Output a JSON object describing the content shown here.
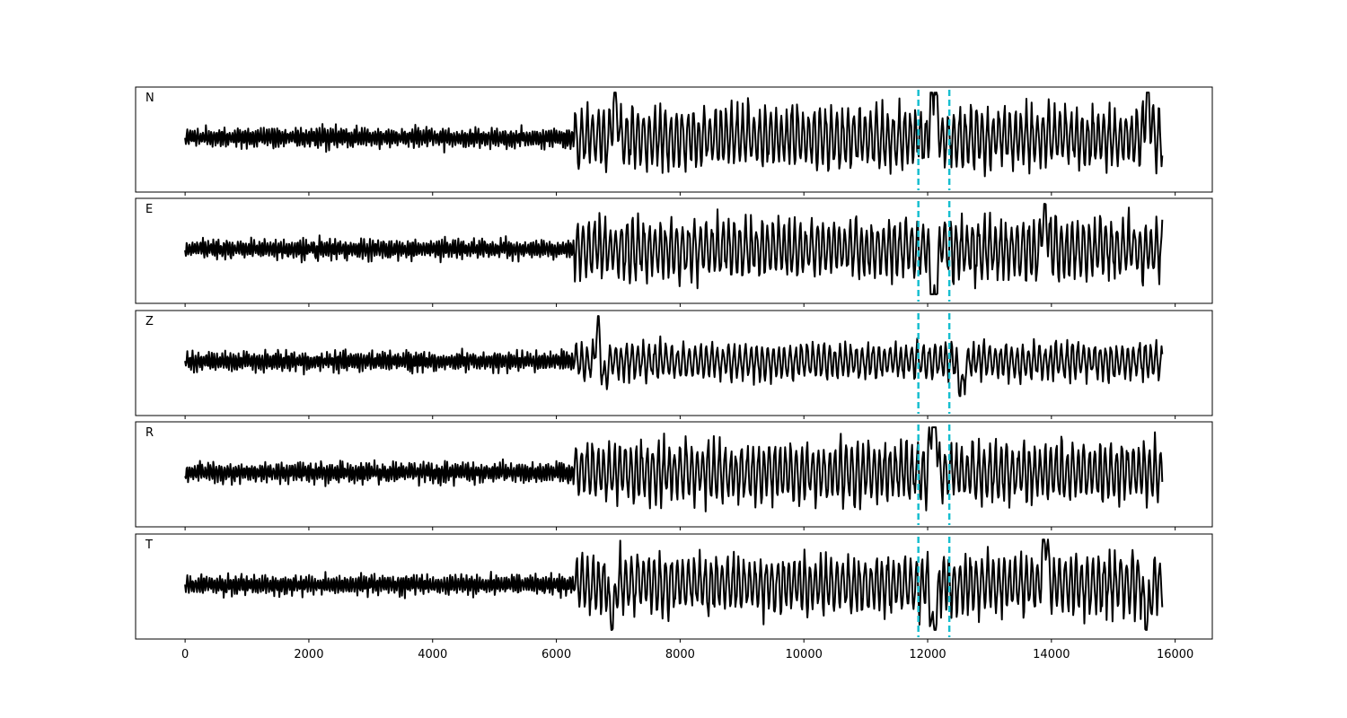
{
  "chart_data": {
    "type": "line",
    "panels": [
      {
        "label": "N",
        "seed": 11,
        "onset_amp": 1.0,
        "bursts": [
          [
            6950,
            0.9
          ],
          [
            12100,
            1.35
          ],
          [
            15550,
            1.0
          ]
        ]
      },
      {
        "label": "E",
        "seed": 23,
        "onset_amp": 1.0,
        "bursts": [
          [
            12100,
            -1.6
          ],
          [
            13900,
            0.9
          ]
        ]
      },
      {
        "label": "Z",
        "seed": 37,
        "onset_amp": 0.6,
        "bursts": [
          [
            6700,
            1.6
          ],
          [
            6730,
            -1.3
          ],
          [
            12550,
            -0.6
          ]
        ]
      },
      {
        "label": "R",
        "seed": 41,
        "onset_amp": 1.0,
        "bursts": [
          [
            12100,
            1.8
          ]
        ]
      },
      {
        "label": "T",
        "seed": 53,
        "onset_amp": 1.0,
        "bursts": [
          [
            6900,
            -0.8
          ],
          [
            12100,
            -1.2
          ],
          [
            13900,
            1.1
          ],
          [
            15550,
            -0.9
          ]
        ]
      }
    ],
    "pre_event_amp": 0.25,
    "event_onset": 6300,
    "x_range": [
      -800,
      16600
    ],
    "xticks": [
      0,
      2000,
      4000,
      6000,
      8000,
      10000,
      12000,
      14000,
      16000
    ],
    "xtick_labels": [
      "0",
      "2000",
      "4000",
      "6000",
      "8000",
      "10000",
      "12000",
      "14000",
      "16000"
    ],
    "n_samples": 15800,
    "picks": [
      11850,
      12350
    ],
    "trace_color": "#000000",
    "pick_color": "#17becf",
    "grid": false,
    "legend": "none"
  }
}
